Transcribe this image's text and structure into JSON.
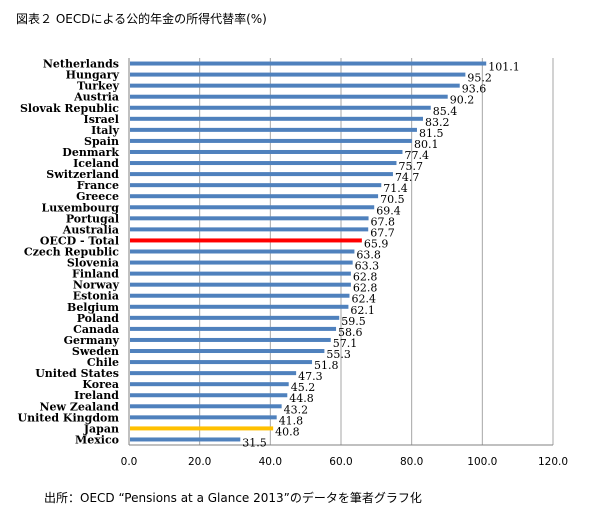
{
  "title": "図表２ OECDによる公的年金の所得代替率(%)",
  "source": "出所：OECD “Pensions at a Glance 2013”のデータを筆者グラフ化",
  "colors": {
    "bar": "#4f81bd",
    "oecd_total": "#ff0000",
    "japan": "#ffc000",
    "grid": "#a6a6a6"
  },
  "chart_data": {
    "type": "bar",
    "orientation": "horizontal",
    "title": "図表２ OECDによる公的年金の所得代替率(%)",
    "xlim": [
      0,
      120
    ],
    "x_ticks": [
      "0.0",
      "20.0",
      "40.0",
      "60.0",
      "80.0",
      "100.0",
      "120.0"
    ],
    "grid": true,
    "categories": [
      "Netherlands",
      "Hungary",
      "Turkey",
      "Austria",
      "Slovak Republic",
      "Israel",
      "Italy",
      "Spain",
      "Denmark",
      "Iceland",
      "Switzerland",
      "France",
      "Greece",
      "Luxembourg",
      "Portugal",
      "Australia",
      "OECD - Total",
      "Czech Republic",
      "Slovenia",
      "Finland",
      "Norway",
      "Estonia",
      "Belgium",
      "Poland",
      "Canada",
      "Germany",
      "Sweden",
      "Chile",
      "United States",
      "Korea",
      "Ireland",
      "New Zealand",
      "United Kingdom",
      "Japan",
      "Mexico"
    ],
    "values": [
      101.1,
      95.2,
      93.6,
      90.2,
      85.4,
      83.2,
      81.5,
      80.1,
      77.4,
      75.7,
      74.7,
      71.4,
      70.5,
      69.4,
      67.8,
      67.7,
      65.9,
      63.8,
      63.3,
      62.8,
      62.8,
      62.4,
      62.1,
      59.5,
      58.6,
      57.1,
      55.3,
      51.8,
      47.3,
      45.2,
      44.8,
      43.2,
      41.8,
      40.8,
      31.5
    ],
    "value_labels": [
      "101.1",
      "95.2",
      "93.6",
      "90.2",
      "85.4",
      "83.2",
      "81.5",
      "80.1",
      "77.4",
      "75.7",
      "74.7",
      "71.4",
      "70.5",
      "69.4",
      "67.8",
      "67.7",
      "65.9",
      "63.8",
      "63.3",
      "62.8",
      "62.8",
      "62.4",
      "62.1",
      "59.5",
      "58.6",
      "57.1",
      "55.3",
      "51.8",
      "47.3",
      "45.2",
      "44.8",
      "43.2",
      "41.8",
      "40.8",
      "31.5"
    ],
    "highlights": {
      "OECD - Total": "#ff0000",
      "Japan": "#ffc000"
    }
  }
}
